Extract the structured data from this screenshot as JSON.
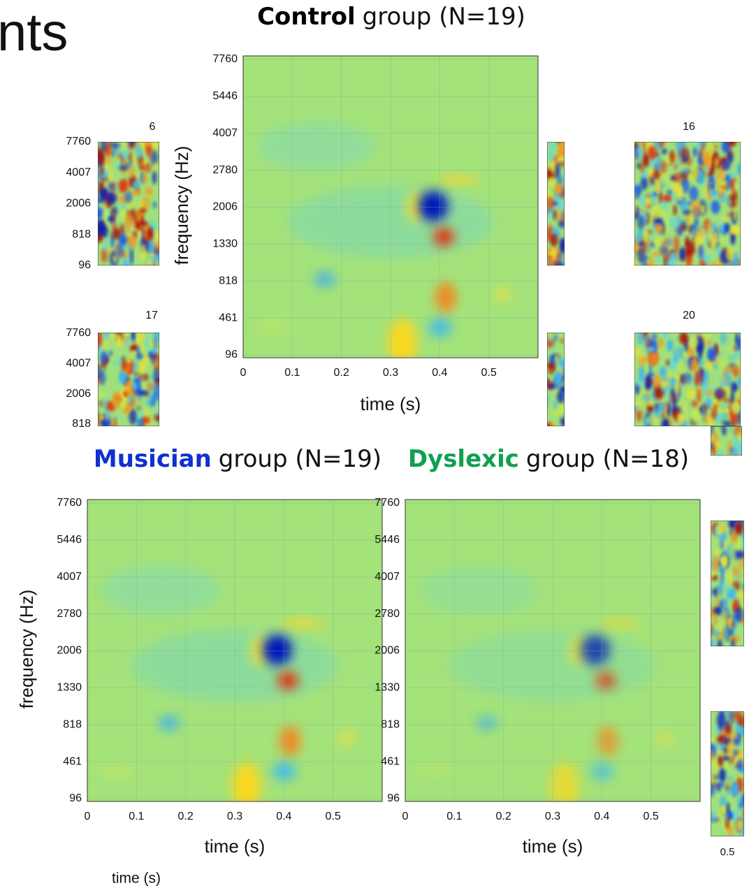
{
  "heading_fragment": "nts",
  "footer_fragment": "time (s)",
  "group_plots": [
    {
      "name": "Control",
      "label": "group (N=19)",
      "name_color": "#000000",
      "ylabel": "frequency (Hz)",
      "xlabel": "time (s)"
    },
    {
      "name": "Musician",
      "label": "group (N=19)",
      "name_color": "#1030d0",
      "ylabel": "frequency (Hz)",
      "xlabel": "time (s)"
    },
    {
      "name": "Dyslexic",
      "label": "group (N=18)",
      "name_color": "#10a050",
      "xlabel": "time (s)"
    }
  ],
  "freq_ticks": [
    "7760",
    "5446",
    "4007",
    "2780",
    "2006",
    "1330",
    "818",
    "461",
    "96"
  ],
  "time_ticks": [
    "0",
    "0.1",
    "0.2",
    "0.3",
    "0.4",
    "0.5"
  ],
  "subject_plots": [
    {
      "label": "6",
      "yticks": [
        "7760",
        "4007",
        "2006",
        "818",
        "96"
      ]
    },
    {
      "label": "17",
      "yticks": [
        "7760",
        "4007",
        "2006",
        "818"
      ]
    },
    {
      "label": "16"
    },
    {
      "label": "20"
    }
  ],
  "partial_tick": "0.5"
}
